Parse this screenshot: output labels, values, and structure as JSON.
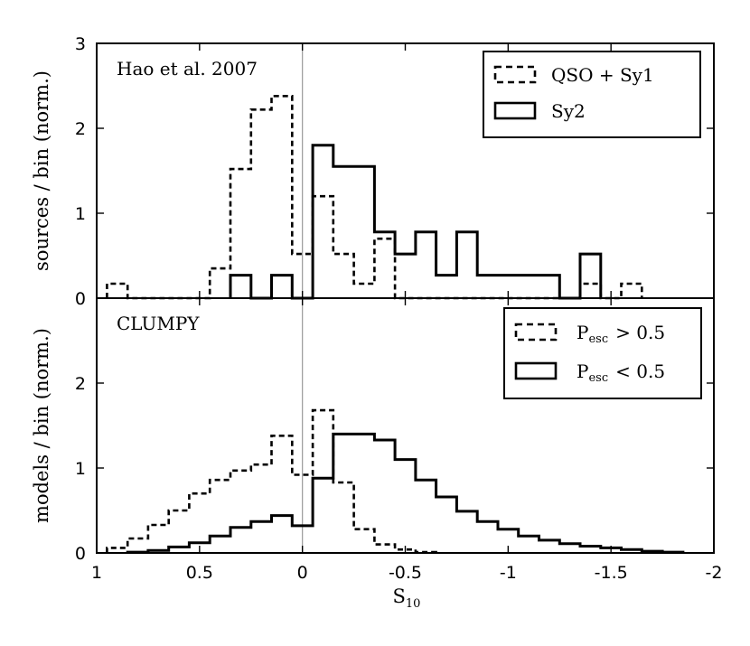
{
  "chart_data": [
    {
      "type": "histogram",
      "panel": "top",
      "title": "Hao et al. 2007",
      "ylabel": "sources / bin (norm.)",
      "xlim": [
        1,
        -2
      ],
      "ylim": [
        0,
        3
      ],
      "yticks": [
        0,
        1,
        2,
        3
      ],
      "reference_line_x": 0,
      "series": [
        {
          "name": "QSO + Sy1",
          "style": "dashed",
          "points": [
            [
              0.95,
              0
            ],
            [
              0.95,
              0.17
            ],
            [
              0.85,
              0.17
            ],
            [
              0.85,
              0
            ],
            [
              0.45,
              0
            ],
            [
              0.45,
              0.35
            ],
            [
              0.35,
              0.35
            ],
            [
              0.35,
              1.52
            ],
            [
              0.25,
              1.52
            ],
            [
              0.25,
              2.22
            ],
            [
              0.15,
              2.22
            ],
            [
              0.15,
              2.38
            ],
            [
              0.05,
              2.38
            ],
            [
              0.05,
              0.52
            ],
            [
              -0.05,
              0.52
            ],
            [
              -0.05,
              1.2
            ],
            [
              -0.15,
              1.2
            ],
            [
              -0.15,
              0.52
            ],
            [
              -0.25,
              0.52
            ],
            [
              -0.25,
              0.17
            ],
            [
              -0.35,
              0.17
            ],
            [
              -0.35,
              0.7
            ],
            [
              -0.45,
              0.7
            ],
            [
              -0.45,
              0
            ],
            [
              -1.35,
              0
            ],
            [
              -1.35,
              0.17
            ],
            [
              -1.45,
              0.17
            ],
            [
              -1.45,
              0
            ],
            [
              -1.55,
              0
            ],
            [
              -1.55,
              0.17
            ],
            [
              -1.65,
              0.17
            ],
            [
              -1.65,
              0
            ]
          ]
        },
        {
          "name": "Sy2",
          "style": "solid",
          "points": [
            [
              0.35,
              0
            ],
            [
              0.35,
              0.27
            ],
            [
              0.25,
              0.27
            ],
            [
              0.25,
              0
            ],
            [
              0.15,
              0
            ],
            [
              0.15,
              0.27
            ],
            [
              0.05,
              0.27
            ],
            [
              0.05,
              0
            ],
            [
              -0.05,
              0
            ],
            [
              -0.05,
              1.8
            ],
            [
              -0.15,
              1.8
            ],
            [
              -0.15,
              1.55
            ],
            [
              -0.35,
              1.55
            ],
            [
              -0.35,
              0.78
            ],
            [
              -0.45,
              0.78
            ],
            [
              -0.45,
              0.52
            ],
            [
              -0.55,
              0.52
            ],
            [
              -0.55,
              0.78
            ],
            [
              -0.65,
              0.78
            ],
            [
              -0.65,
              0.27
            ],
            [
              -0.75,
              0.27
            ],
            [
              -0.75,
              0.78
            ],
            [
              -0.85,
              0.78
            ],
            [
              -0.85,
              0.27
            ],
            [
              -1.25,
              0.27
            ],
            [
              -1.25,
              0
            ],
            [
              -1.35,
              0
            ],
            [
              -1.35,
              0.52
            ],
            [
              -1.45,
              0.52
            ],
            [
              -1.45,
              0
            ]
          ]
        }
      ],
      "legend": {
        "position": "top-right",
        "entries": [
          "QSO + Sy1",
          "Sy2"
        ]
      }
    },
    {
      "type": "histogram",
      "panel": "bottom",
      "title": "CLUMPY",
      "ylabel": "models / bin (norm.)",
      "xlabel": "S10",
      "xlim": [
        1,
        -2
      ],
      "ylim": [
        0,
        3
      ],
      "yticks": [
        0,
        1,
        2
      ],
      "xticks": [
        1,
        0.5,
        0,
        -0.5,
        -1,
        -1.5,
        -2
      ],
      "reference_line_x": 0,
      "series": [
        {
          "name": "Pesc > 0.5",
          "style": "dashed",
          "points": [
            [
              0.95,
              0
            ],
            [
              0.95,
              0.06
            ],
            [
              0.85,
              0.06
            ],
            [
              0.85,
              0.17
            ],
            [
              0.75,
              0.17
            ],
            [
              0.75,
              0.33
            ],
            [
              0.65,
              0.33
            ],
            [
              0.65,
              0.5
            ],
            [
              0.55,
              0.5
            ],
            [
              0.55,
              0.7
            ],
            [
              0.45,
              0.7
            ],
            [
              0.45,
              0.86
            ],
            [
              0.35,
              0.86
            ],
            [
              0.35,
              0.97
            ],
            [
              0.25,
              0.97
            ],
            [
              0.25,
              1.04
            ],
            [
              0.15,
              1.04
            ],
            [
              0.15,
              1.38
            ],
            [
              0.05,
              1.38
            ],
            [
              0.05,
              0.92
            ],
            [
              -0.05,
              0.92
            ],
            [
              -0.05,
              1.68
            ],
            [
              -0.15,
              1.68
            ],
            [
              -0.15,
              0.83
            ],
            [
              -0.25,
              0.83
            ],
            [
              -0.25,
              0.28
            ],
            [
              -0.35,
              0.28
            ],
            [
              -0.35,
              0.1
            ],
            [
              -0.45,
              0.1
            ],
            [
              -0.45,
              0.04
            ],
            [
              -0.55,
              0.04
            ],
            [
              -0.55,
              0.01
            ],
            [
              -0.65,
              0.01
            ],
            [
              -0.65,
              0
            ]
          ]
        },
        {
          "name": "Pesc < 0.5",
          "style": "solid",
          "points": [
            [
              0.85,
              0
            ],
            [
              0.85,
              0.01
            ],
            [
              0.75,
              0.01
            ],
            [
              0.75,
              0.03
            ],
            [
              0.65,
              0.03
            ],
            [
              0.65,
              0.07
            ],
            [
              0.55,
              0.07
            ],
            [
              0.55,
              0.12
            ],
            [
              0.45,
              0.12
            ],
            [
              0.45,
              0.2
            ],
            [
              0.35,
              0.2
            ],
            [
              0.35,
              0.3
            ],
            [
              0.25,
              0.3
            ],
            [
              0.25,
              0.37
            ],
            [
              0.15,
              0.37
            ],
            [
              0.15,
              0.44
            ],
            [
              0.05,
              0.44
            ],
            [
              0.05,
              0.32
            ],
            [
              -0.05,
              0.32
            ],
            [
              -0.05,
              0.88
            ],
            [
              -0.15,
              0.88
            ],
            [
              -0.15,
              1.4
            ],
            [
              -0.35,
              1.4
            ],
            [
              -0.35,
              1.33
            ],
            [
              -0.45,
              1.33
            ],
            [
              -0.45,
              1.1
            ],
            [
              -0.55,
              1.1
            ],
            [
              -0.55,
              0.86
            ],
            [
              -0.65,
              0.86
            ],
            [
              -0.65,
              0.66
            ],
            [
              -0.75,
              0.66
            ],
            [
              -0.75,
              0.49
            ],
            [
              -0.85,
              0.49
            ],
            [
              -0.85,
              0.37
            ],
            [
              -0.95,
              0.37
            ],
            [
              -0.95,
              0.28
            ],
            [
              -1.05,
              0.28
            ],
            [
              -1.05,
              0.2
            ],
            [
              -1.15,
              0.2
            ],
            [
              -1.15,
              0.15
            ],
            [
              -1.25,
              0.15
            ],
            [
              -1.25,
              0.11
            ],
            [
              -1.35,
              0.11
            ],
            [
              -1.35,
              0.08
            ],
            [
              -1.45,
              0.08
            ],
            [
              -1.45,
              0.06
            ],
            [
              -1.55,
              0.06
            ],
            [
              -1.55,
              0.04
            ],
            [
              -1.65,
              0.04
            ],
            [
              -1.65,
              0.02
            ],
            [
              -1.75,
              0.02
            ],
            [
              -1.75,
              0.01
            ],
            [
              -1.85,
              0.01
            ],
            [
              -1.85,
              0
            ]
          ]
        }
      ],
      "legend": {
        "position": "top-right",
        "entries": [
          "Pesc > 0.5",
          "Pesc < 0.5"
        ]
      }
    }
  ],
  "labels": {
    "top_title": "Hao et al. 2007",
    "top_ylabel": "sources / bin (norm.)",
    "bottom_title": "CLUMPY",
    "bottom_ylabel": "models / bin (norm.)",
    "xlabel_main": "S",
    "xlabel_sub": "10",
    "legend_top": [
      "QSO + Sy1",
      "Sy2"
    ],
    "legend_bottom_main": "P",
    "legend_bottom_sub": "esc",
    "legend_bottom_rel": [
      "> 0.5",
      "< 0.5"
    ]
  },
  "tick_labels": {
    "x": [
      "1",
      "0.5",
      "0",
      "-0.5",
      "-1",
      "-1.5",
      "-2"
    ],
    "top_y": [
      "0",
      "1",
      "2",
      "3"
    ],
    "bottom_y": [
      "0",
      "1",
      "2"
    ]
  }
}
